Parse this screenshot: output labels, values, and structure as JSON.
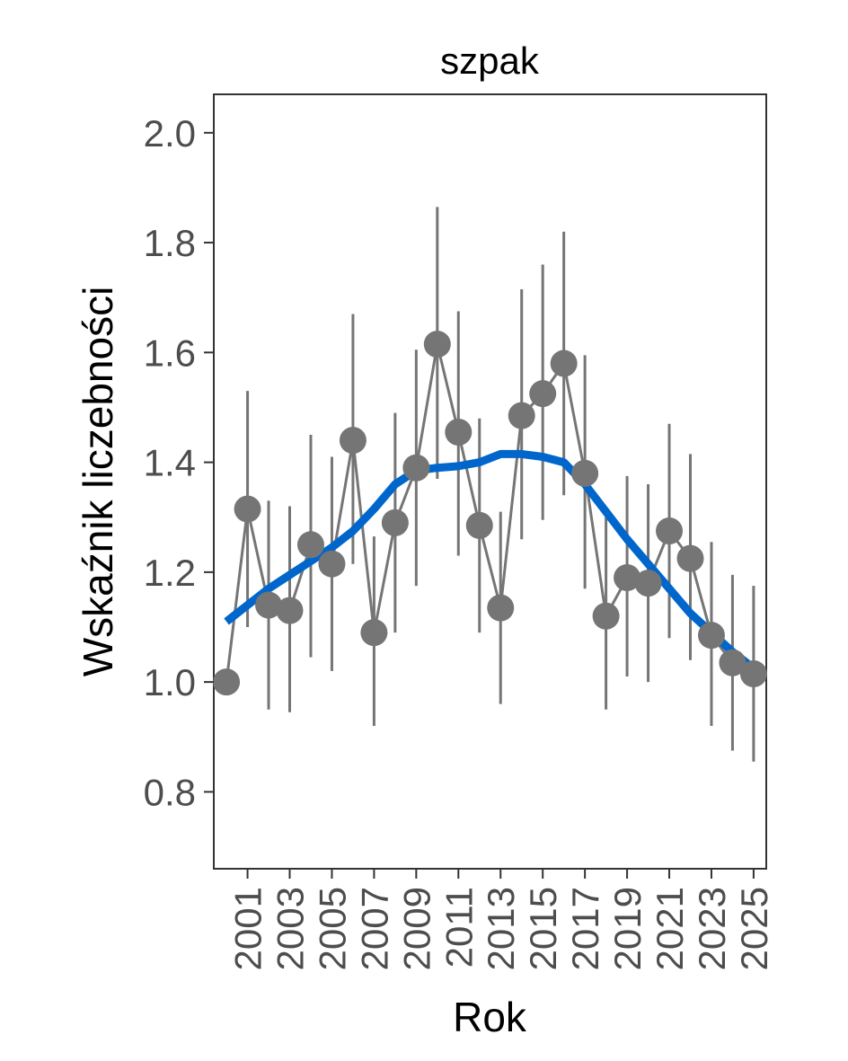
{
  "chart_data": {
    "type": "line",
    "title": "szpak",
    "xlabel": "Rok",
    "ylabel": "Wskaźnik liczebności",
    "xlim": [
      1999.4,
      2025.6
    ],
    "ylim": [
      0.66,
      2.07
    ],
    "x_ticks": [
      2001,
      2003,
      2005,
      2007,
      2009,
      2011,
      2013,
      2015,
      2017,
      2019,
      2021,
      2023,
      2025
    ],
    "y_ticks": [
      0.8,
      1.0,
      1.2,
      1.4,
      1.6,
      1.8,
      2.0
    ],
    "y_tick_labels": [
      "0.8",
      "1.0",
      "1.2",
      "1.4",
      "1.6",
      "1.8",
      "2.0"
    ],
    "grid": false,
    "colors": {
      "points": "#757575",
      "trend": "#0066cc",
      "axis": "#333333"
    },
    "series": [
      {
        "kind": "index-with-ci",
        "x": [
          2000,
          2001,
          2002,
          2003,
          2004,
          2005,
          2006,
          2007,
          2008,
          2009,
          2010,
          2011,
          2012,
          2013,
          2014,
          2015,
          2016,
          2017,
          2018,
          2019,
          2020,
          2021,
          2022,
          2023,
          2024,
          2025
        ],
        "y": [
          1.0,
          1.315,
          1.14,
          1.13,
          1.25,
          1.215,
          1.44,
          1.09,
          1.29,
          1.39,
          1.615,
          1.455,
          1.285,
          1.135,
          1.485,
          1.525,
          1.58,
          1.38,
          1.12,
          1.19,
          1.18,
          1.275,
          1.225,
          1.085,
          1.035,
          1.015
        ],
        "lower": [
          null,
          1.1,
          0.95,
          0.945,
          1.045,
          1.02,
          1.215,
          0.92,
          1.09,
          1.175,
          1.37,
          1.23,
          1.09,
          0.96,
          1.26,
          1.295,
          1.34,
          1.17,
          0.95,
          1.01,
          1.0,
          1.08,
          1.04,
          0.92,
          0.875,
          0.855
        ],
        "upper": [
          null,
          1.53,
          1.33,
          1.32,
          1.45,
          1.41,
          1.67,
          1.265,
          1.49,
          1.605,
          1.865,
          1.675,
          1.48,
          1.31,
          1.715,
          1.76,
          1.82,
          1.595,
          1.3,
          1.375,
          1.36,
          1.47,
          1.415,
          1.255,
          1.195,
          1.175
        ]
      },
      {
        "kind": "trend",
        "x": [
          2000,
          2001,
          2002,
          2003,
          2004,
          2005,
          2006,
          2007,
          2008,
          2009,
          2010,
          2011,
          2012,
          2013,
          2014,
          2015,
          2016,
          2017,
          2018,
          2019,
          2020,
          2021,
          2022,
          2023,
          2024,
          2025
        ],
        "y": [
          1.11,
          1.14,
          1.17,
          1.195,
          1.22,
          1.245,
          1.275,
          1.315,
          1.36,
          1.385,
          1.39,
          1.393,
          1.4,
          1.415,
          1.415,
          1.41,
          1.4,
          1.36,
          1.31,
          1.26,
          1.215,
          1.17,
          1.125,
          1.09,
          1.055,
          1.025
        ]
      }
    ]
  }
}
